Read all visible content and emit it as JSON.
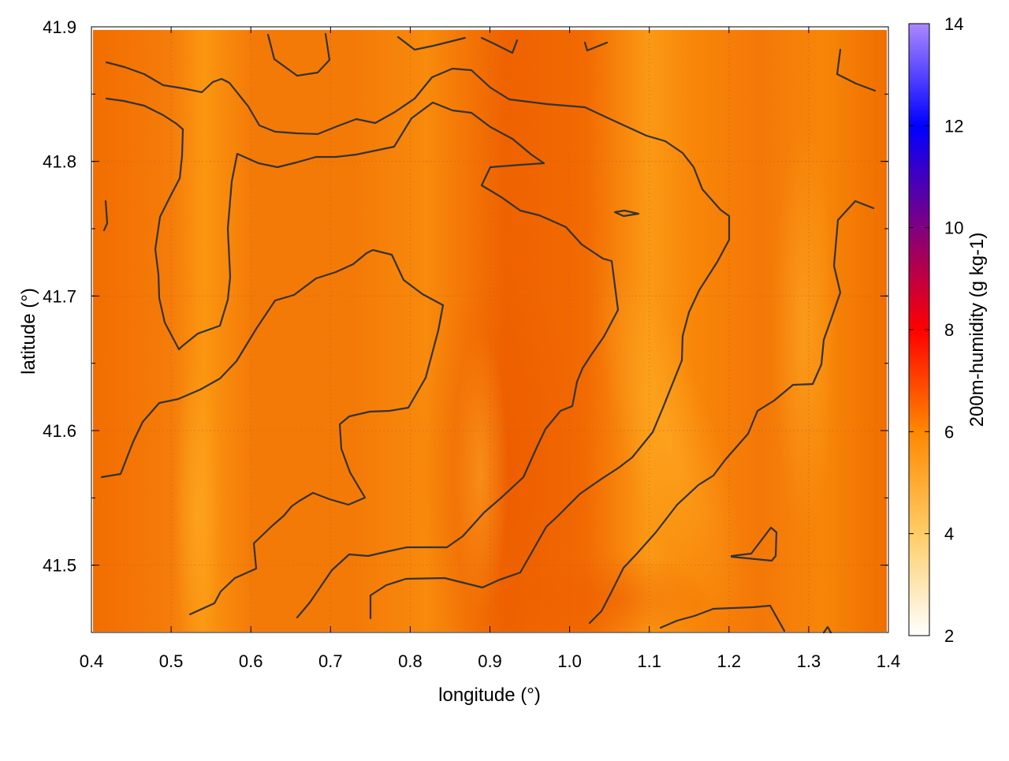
{
  "chart_data": {
    "type": "heatmap",
    "title": "",
    "xlabel": "longitude (°)",
    "ylabel": "latitude (°)",
    "colorbar_label": "200m-humidity (g kg-1)",
    "xlim": [
      0.4,
      1.4
    ],
    "ylim": [
      41.45,
      41.9
    ],
    "color_range": [
      2,
      14
    ],
    "x_ticks": [
      "0.4",
      "0.5",
      "0.6",
      "0.7",
      "0.8",
      "0.9",
      "1.0",
      "1.1",
      "1.2",
      "1.3",
      "1.4"
    ],
    "y_ticks": [
      "41.5",
      "41.6",
      "41.7",
      "41.8",
      "41.9"
    ],
    "colorbar_ticks": [
      "2",
      "4",
      "6",
      "8",
      "10",
      "12",
      "14"
    ],
    "grid": true,
    "colormap": [
      "#ffffff",
      "#ffcc66",
      "#ff9900",
      "#ff6600",
      "#ff0000",
      "#800080",
      "#0000ff",
      "#aa88ff"
    ],
    "field_summary": "humidity approx 5.5-6.6 g/kg over whole domain, moister band near lon 0.85-1.0, drier streaks near lon 0.55 and 1.1",
    "contour_color": "#333333"
  }
}
